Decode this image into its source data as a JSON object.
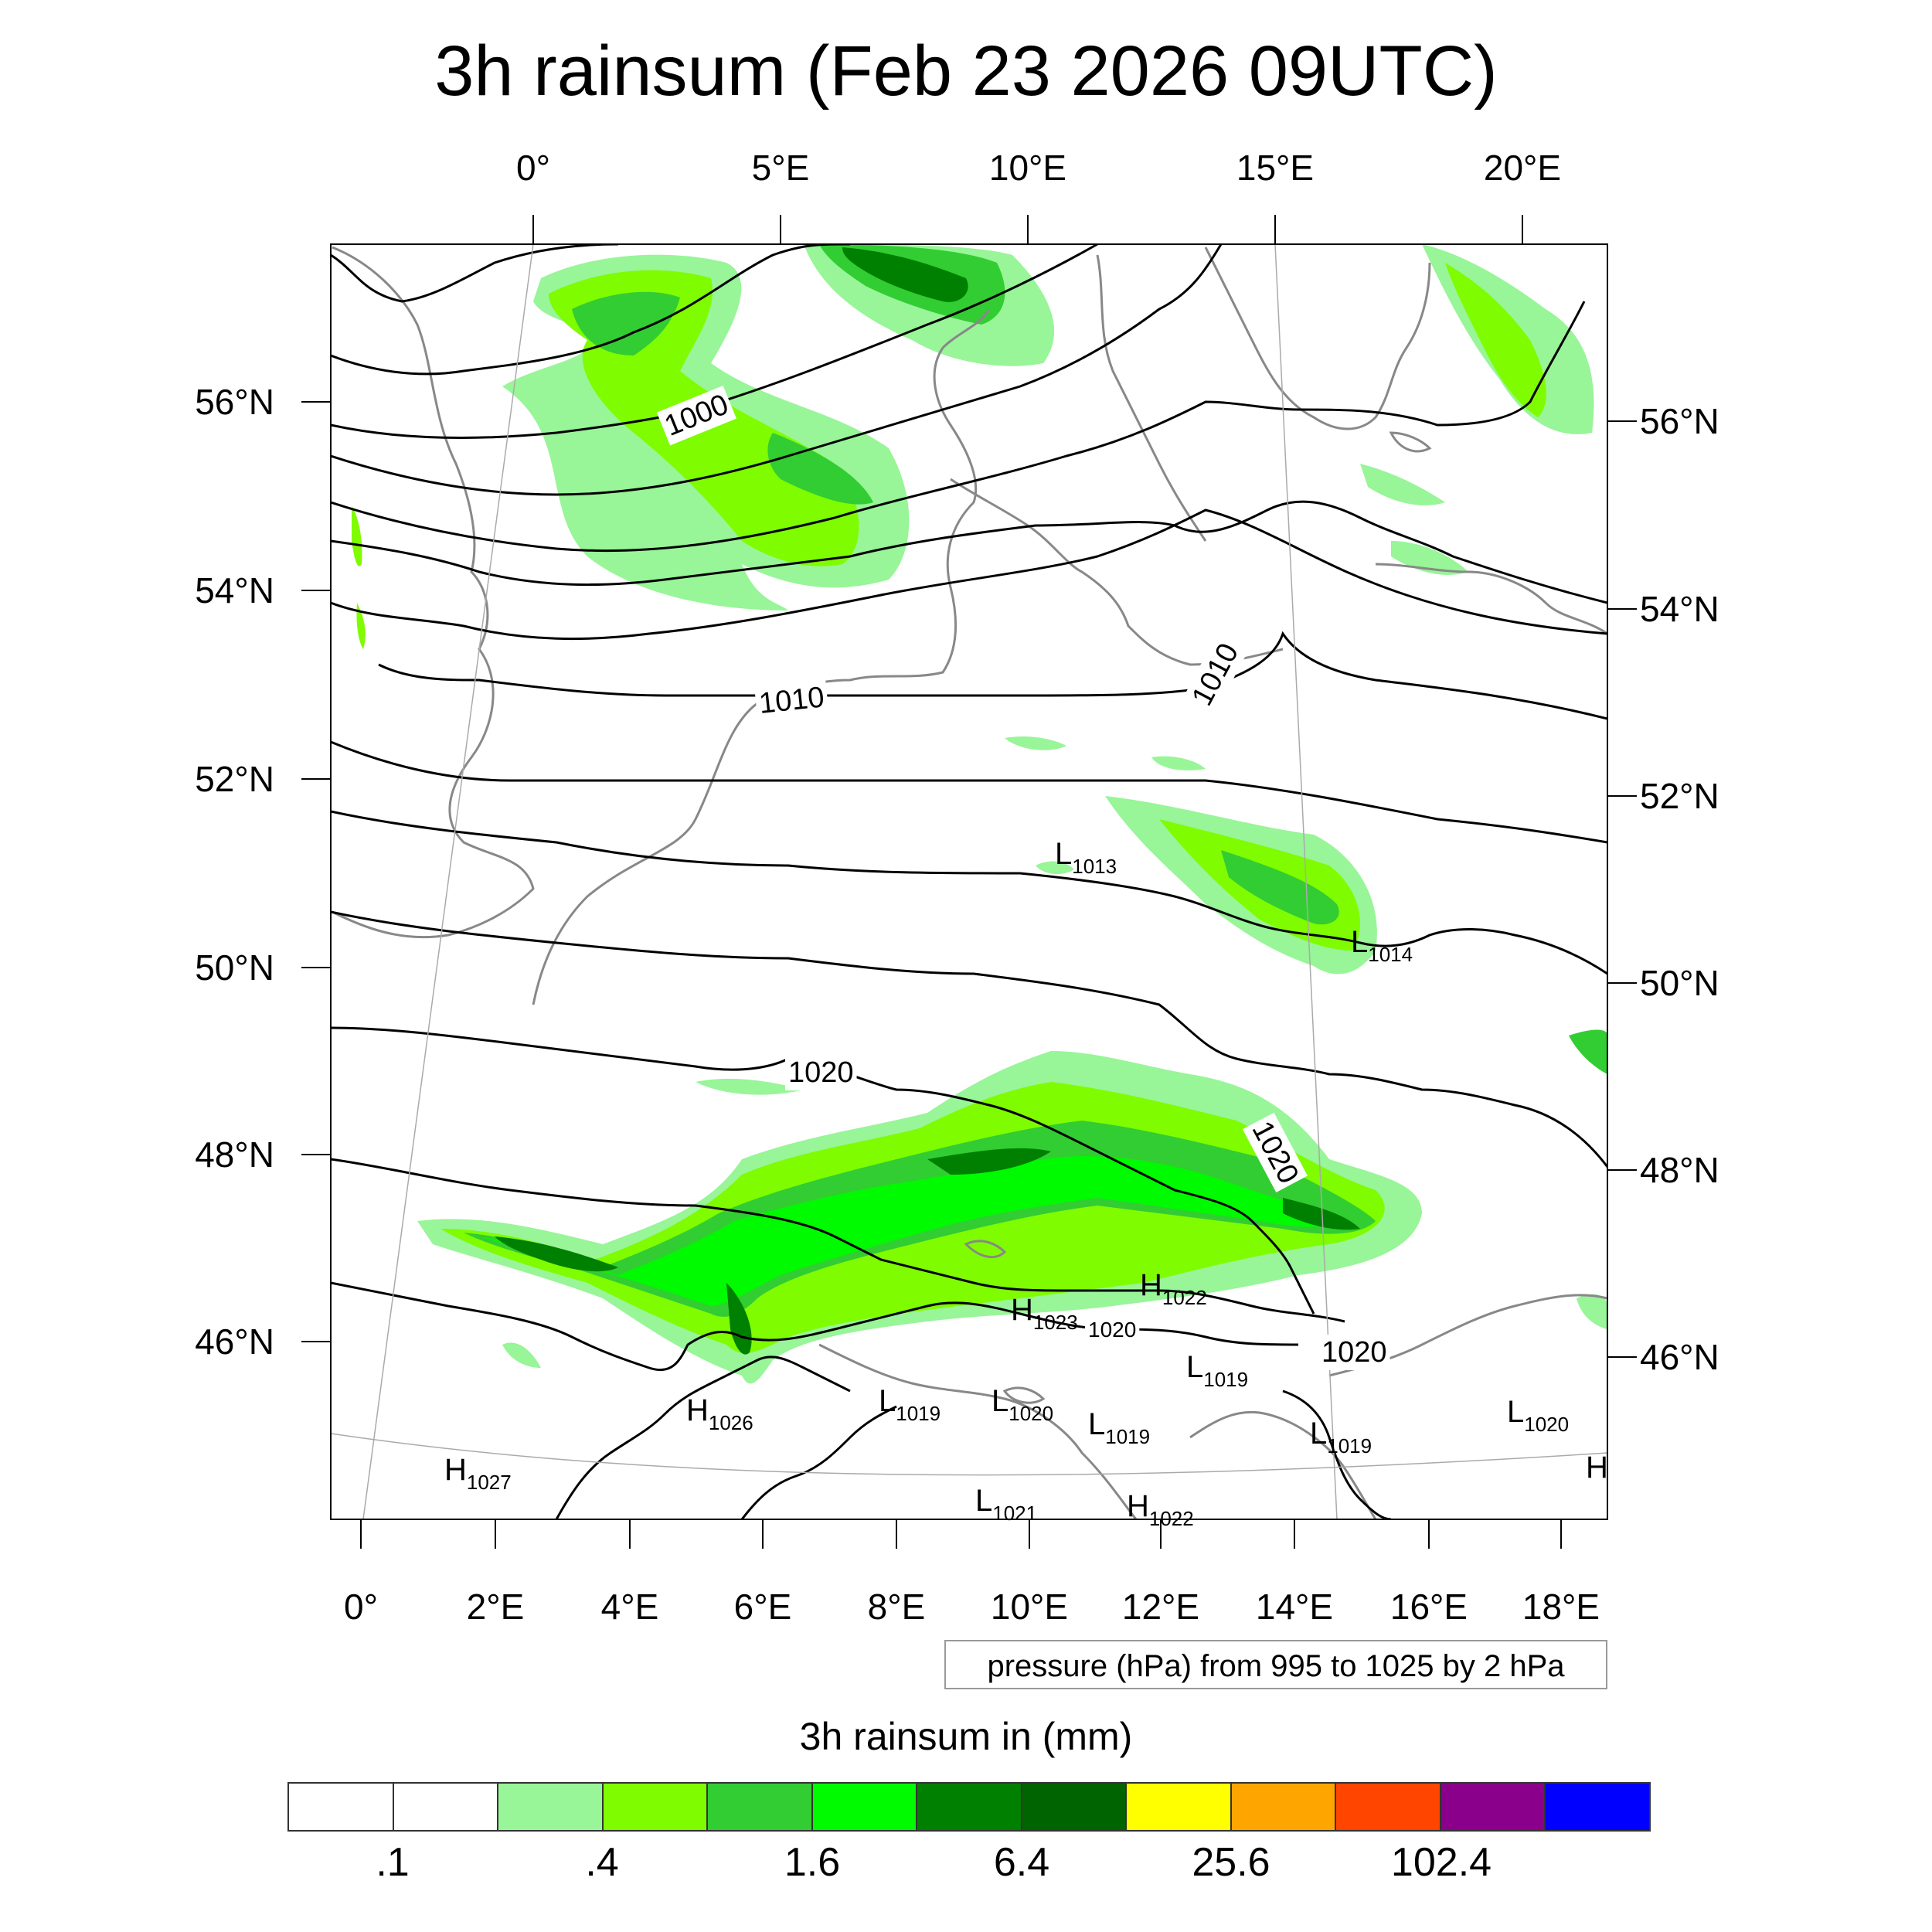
{
  "title": "3h rainsum (Feb 23 2026 09UTC)",
  "top_lon_ticks": [
    "0°",
    "5°E",
    "10°E",
    "15°E",
    "20°E"
  ],
  "bottom_lon_ticks": [
    "0°",
    "2°E",
    "4°E",
    "6°E",
    "8°E",
    "10°E",
    "12°E",
    "14°E",
    "16°E",
    "18°E"
  ],
  "left_lat_ticks": [
    "56°N",
    "54°N",
    "52°N",
    "50°N",
    "48°N",
    "46°N"
  ],
  "right_lat_ticks": [
    "56°N",
    "54°N",
    "52°N",
    "50°N",
    "48°N",
    "46°N"
  ],
  "info_text": "pressure (hPa) from 995 to 1025 by 2 hPa",
  "isobar_labels": [
    "1000",
    "1010",
    "1010",
    "1020",
    "1020",
    "1020",
    "1020"
  ],
  "pressure_centers": [
    {
      "type": "L",
      "value": "1013"
    },
    {
      "type": "L",
      "value": "1014"
    },
    {
      "type": "H",
      "value": "1022"
    },
    {
      "type": "H",
      "value": "1023"
    },
    {
      "type": "L",
      "value": "1019"
    },
    {
      "type": "H",
      "value": "1026"
    },
    {
      "type": "L",
      "value": "1019"
    },
    {
      "type": "L",
      "value": "1020"
    },
    {
      "type": "L",
      "value": "1019"
    },
    {
      "type": "L",
      "value": "1019"
    },
    {
      "type": "L",
      "value": "1020"
    },
    {
      "type": "H",
      "value": "1027"
    },
    {
      "type": "L",
      "value": "1021"
    },
    {
      "type": "H",
      "value": "1022"
    },
    {
      "type": "H",
      "value": ""
    }
  ],
  "colorbar": {
    "title": "3h rainsum in (mm)",
    "colors": [
      "#ffffff",
      "#ffffff",
      "#98f598",
      "#7ffc00",
      "#32cd32",
      "#00fa00",
      "#008000",
      "#006400",
      "#ffff00",
      "#ffa500",
      "#ff4500",
      "#8b008b",
      "#0000ff"
    ],
    "labels": [
      ".1",
      ".4",
      "1.6",
      "6.4",
      "25.6",
      "102.4"
    ]
  },
  "rain_colors": {
    "light": "#98f598",
    "lime": "#7ffc00",
    "mid": "#32cd32",
    "bright": "#00fa00",
    "green": "#008000",
    "dark": "#006400"
  }
}
